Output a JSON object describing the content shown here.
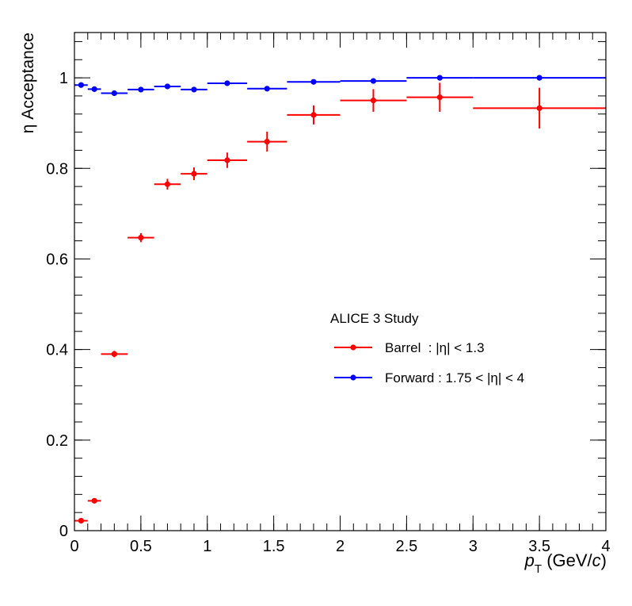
{
  "chart_data": {
    "type": "scatter",
    "title": "",
    "xlabel": {
      "italic": "p",
      "sub": "T",
      "rest_before": " (GeV/",
      "italic2": "c",
      "rest_after": ")"
    },
    "ylabel": "η Acceptance",
    "xlim": [
      0,
      4
    ],
    "ylim": [
      0,
      1.1
    ],
    "x_ticks": [
      {
        "v": 0,
        "label": "0"
      },
      {
        "v": 0.5,
        "label": "0.5"
      },
      {
        "v": 1,
        "label": "1"
      },
      {
        "v": 1.5,
        "label": "1.5"
      },
      {
        "v": 2,
        "label": "2"
      },
      {
        "v": 2.5,
        "label": "2.5"
      },
      {
        "v": 3,
        "label": "3"
      },
      {
        "v": 3.5,
        "label": "3.5"
      },
      {
        "v": 4,
        "label": "4"
      }
    ],
    "y_ticks": [
      {
        "v": 0,
        "label": "0"
      },
      {
        "v": 0.2,
        "label": "0.2"
      },
      {
        "v": 0.4,
        "label": "0.4"
      },
      {
        "v": 0.6,
        "label": "0.6"
      },
      {
        "v": 0.8,
        "label": "0.8"
      },
      {
        "v": 1,
        "label": "1"
      }
    ],
    "x_minor_step": 0.1,
    "y_minor_step": 0.04,
    "legend": {
      "header": "ALICE 3 Study",
      "position": "center-right"
    },
    "series": [
      {
        "name": "Barrel  : |η| < 1.3",
        "color": "#ff0000",
        "points": [
          {
            "x": 0.05,
            "y": 0.022,
            "xerr": 0.05,
            "yerr": 0.004
          },
          {
            "x": 0.15,
            "y": 0.066,
            "xerr": 0.05,
            "yerr": 0.005
          },
          {
            "x": 0.3,
            "y": 0.39,
            "xerr": 0.1,
            "yerr": 0.007
          },
          {
            "x": 0.5,
            "y": 0.647,
            "xerr": 0.1,
            "yerr": 0.01
          },
          {
            "x": 0.7,
            "y": 0.765,
            "xerr": 0.1,
            "yerr": 0.012
          },
          {
            "x": 0.9,
            "y": 0.788,
            "xerr": 0.1,
            "yerr": 0.014
          },
          {
            "x": 1.15,
            "y": 0.818,
            "xerr": 0.15,
            "yerr": 0.017
          },
          {
            "x": 1.45,
            "y": 0.859,
            "xerr": 0.15,
            "yerr": 0.022
          },
          {
            "x": 1.8,
            "y": 0.918,
            "xerr": 0.2,
            "yerr": 0.021
          },
          {
            "x": 2.25,
            "y": 0.95,
            "xerr": 0.25,
            "yerr": 0.025
          },
          {
            "x": 2.75,
            "y": 0.957,
            "xerr": 0.25,
            "yerr": 0.032
          },
          {
            "x": 3.5,
            "y": 0.933,
            "xerr": 0.5,
            "yerr": 0.045
          }
        ]
      },
      {
        "name": "Forward : 1.75 < |η| < 4",
        "color": "#0000ff",
        "points": [
          {
            "x": 0.05,
            "y": 0.984,
            "xerr": 0.05,
            "yerr": 0.003
          },
          {
            "x": 0.15,
            "y": 0.975,
            "xerr": 0.05,
            "yerr": 0.003
          },
          {
            "x": 0.3,
            "y": 0.966,
            "xerr": 0.1,
            "yerr": 0.003
          },
          {
            "x": 0.5,
            "y": 0.974,
            "xerr": 0.1,
            "yerr": 0.003
          },
          {
            "x": 0.7,
            "y": 0.981,
            "xerr": 0.1,
            "yerr": 0.003
          },
          {
            "x": 0.9,
            "y": 0.974,
            "xerr": 0.1,
            "yerr": 0.003
          },
          {
            "x": 1.15,
            "y": 0.988,
            "xerr": 0.15,
            "yerr": 0.003
          },
          {
            "x": 1.45,
            "y": 0.976,
            "xerr": 0.15,
            "yerr": 0.003
          },
          {
            "x": 1.8,
            "y": 0.991,
            "xerr": 0.2,
            "yerr": 0.002
          },
          {
            "x": 2.25,
            "y": 0.993,
            "xerr": 0.25,
            "yerr": 0.002
          },
          {
            "x": 2.75,
            "y": 1.0,
            "xerr": 0.25,
            "yerr": 0.001
          },
          {
            "x": 3.5,
            "y": 1.0,
            "xerr": 0.5,
            "yerr": 0.001
          }
        ]
      }
    ]
  }
}
